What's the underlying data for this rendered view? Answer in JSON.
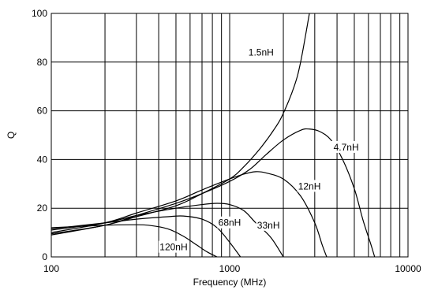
{
  "chart_data": {
    "type": "line",
    "title": "",
    "xlabel": "Frequency (MHz)",
    "ylabel": "Q",
    "xscale": "log",
    "xlim": [
      100,
      10000
    ],
    "ylim": [
      0,
      100
    ],
    "grid": true,
    "x_ticks": [
      {
        "value": 100,
        "label": "100"
      },
      {
        "value": 1000,
        "label": "1000"
      },
      {
        "value": 10000,
        "label": "10000"
      }
    ],
    "y_ticks": [
      {
        "value": 0,
        "label": "0"
      },
      {
        "value": 20,
        "label": "20"
      },
      {
        "value": 40,
        "label": "40"
      },
      {
        "value": 60,
        "label": "60"
      },
      {
        "value": 80,
        "label": "80"
      },
      {
        "value": 100,
        "label": "100"
      }
    ],
    "series": [
      {
        "name": "1.5nH",
        "label_at": [
          1500,
          84
        ],
        "points": [
          [
            100,
            9
          ],
          [
            200,
            13
          ],
          [
            300,
            16.5
          ],
          [
            500,
            21
          ],
          [
            700,
            26
          ],
          [
            1000,
            32
          ],
          [
            1200,
            37
          ],
          [
            1500,
            45
          ],
          [
            1800,
            53
          ],
          [
            2000,
            59
          ],
          [
            2300,
            70
          ],
          [
            2500,
            80
          ],
          [
            2800,
            100
          ]
        ]
      },
      {
        "name": "4.7nH",
        "label_at": [
          4500,
          45
        ],
        "points": [
          [
            100,
            9.5
          ],
          [
            200,
            13
          ],
          [
            300,
            17
          ],
          [
            500,
            22
          ],
          [
            700,
            26
          ],
          [
            1000,
            31
          ],
          [
            1300,
            36
          ],
          [
            1600,
            42
          ],
          [
            2000,
            48
          ],
          [
            2500,
            52
          ],
          [
            2800,
            52.5
          ],
          [
            3200,
            51.5
          ],
          [
            3700,
            48
          ],
          [
            4300,
            40
          ],
          [
            5000,
            28
          ],
          [
            5600,
            15
          ],
          [
            6200,
            5
          ],
          [
            6500,
            0
          ]
        ]
      },
      {
        "name": "12nH",
        "label_at": [
          2800,
          29
        ],
        "points": [
          [
            100,
            10
          ],
          [
            200,
            14
          ],
          [
            300,
            18
          ],
          [
            500,
            23
          ],
          [
            700,
            27.5
          ],
          [
            1000,
            32
          ],
          [
            1200,
            34
          ],
          [
            1400,
            35
          ],
          [
            1600,
            34.5
          ],
          [
            2000,
            32
          ],
          [
            2500,
            25
          ],
          [
            3000,
            14
          ],
          [
            3300,
            5
          ],
          [
            3500,
            0
          ]
        ]
      },
      {
        "name": "33nH",
        "label_at": [
          1650,
          13
        ],
        "points": [
          [
            100,
            11
          ],
          [
            200,
            14
          ],
          [
            300,
            17
          ],
          [
            500,
            20
          ],
          [
            700,
            21.5
          ],
          [
            850,
            22
          ],
          [
            1000,
            21.5
          ],
          [
            1200,
            19
          ],
          [
            1400,
            14
          ],
          [
            1700,
            8
          ],
          [
            2000,
            0
          ]
        ]
      },
      {
        "name": "68nH",
        "label_at": [
          1000,
          14
        ],
        "points": [
          [
            100,
            11.5
          ],
          [
            200,
            14
          ],
          [
            300,
            15.5
          ],
          [
            450,
            16.5
          ],
          [
            550,
            16.8
          ],
          [
            700,
            15.5
          ],
          [
            850,
            12
          ],
          [
            1000,
            6
          ],
          [
            1150,
            0
          ]
        ]
      },
      {
        "name": "120nH",
        "label_at": [
          485,
          4
        ],
        "points": [
          [
            100,
            12
          ],
          [
            200,
            13
          ],
          [
            280,
            13.2
          ],
          [
            350,
            13
          ],
          [
            450,
            11.5
          ],
          [
            550,
            8.5
          ],
          [
            650,
            5
          ],
          [
            750,
            2
          ],
          [
            850,
            0
          ]
        ]
      }
    ]
  }
}
